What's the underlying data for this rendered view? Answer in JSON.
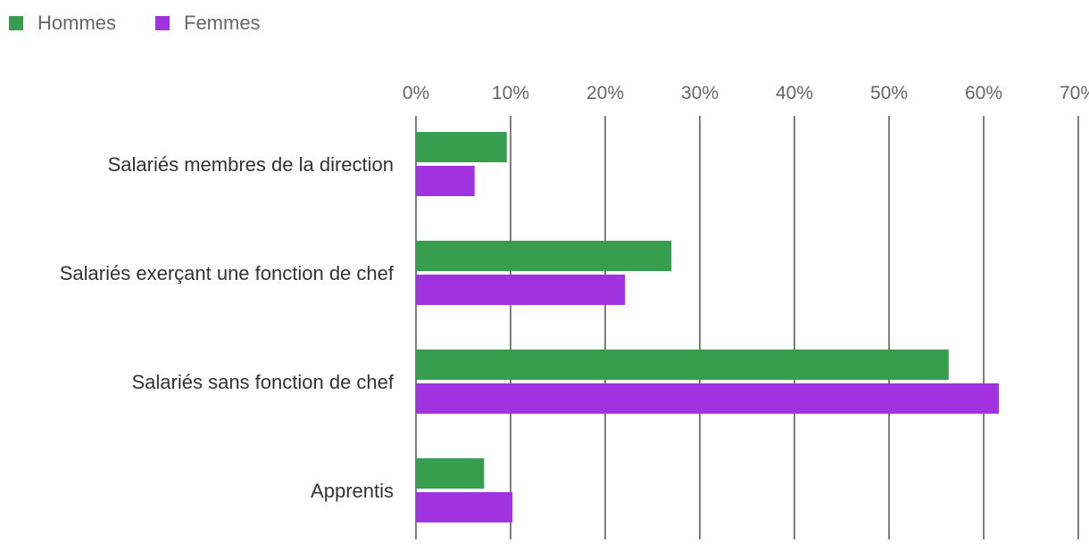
{
  "chart_data": {
    "type": "bar",
    "orientation": "horizontal",
    "categories": [
      "Salariés membres de la direction",
      "Salariés exerçant une fonction de chef",
      "Salariés sans fonction de chef",
      "Apprentis"
    ],
    "series": [
      {
        "name": "Hommes",
        "color": "#389e4f",
        "values": [
          9.6,
          27.0,
          56.3,
          7.2
        ]
      },
      {
        "name": "Femmes",
        "color": "#a032e0",
        "values": [
          6.2,
          22.1,
          61.6,
          10.2
        ]
      }
    ],
    "xlim": [
      0,
      70
    ],
    "ticks": [
      0,
      10,
      20,
      30,
      40,
      50,
      60,
      70
    ],
    "tick_labels": [
      "0%",
      "10%",
      "20%",
      "30%",
      "40%",
      "50%",
      "60%",
      "70%"
    ],
    "grid": true,
    "legend_position": "top-left",
    "title": "",
    "xlabel": "",
    "ylabel": ""
  }
}
